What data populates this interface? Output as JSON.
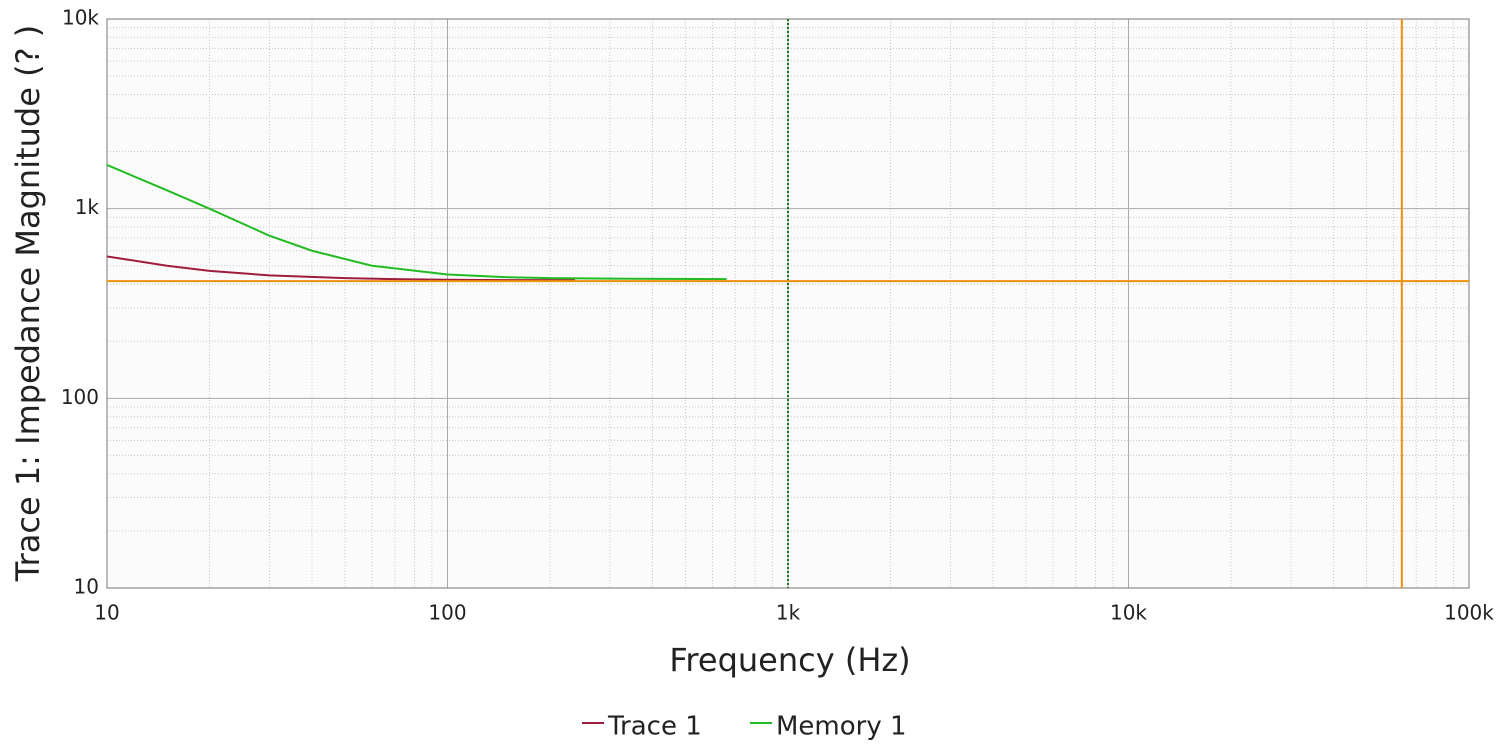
{
  "chart_data": {
    "type": "line",
    "x_label": "Frequency (Hz)",
    "y_label": "Trace 1: Impedance Magnitude (? )",
    "y_label_color": "#b0203c",
    "log_x": true,
    "log_y": true,
    "grid": true,
    "xlim": [
      10,
      100000
    ],
    "ylim": [
      10,
      10000
    ],
    "xticks": [
      10,
      100,
      {
        "value": 1000,
        "label": "1k"
      },
      {
        "value": 10000,
        "label": "10k"
      },
      {
        "value": 100000,
        "label": "100k"
      }
    ],
    "yticks": [
      10,
      100,
      {
        "value": 1000,
        "label": "1k"
      },
      {
        "value": 10000,
        "label": "10k"
      }
    ],
    "legend": "bottom",
    "series": [
      {
        "name": "Trace 1",
        "color": "#a01c3c",
        "x": [
          10,
          15,
          20,
          30,
          50,
          70,
          100,
          150,
          237
        ],
        "values": [
          560,
          500,
          470,
          445,
          430,
          425,
          422,
          420,
          420
        ]
      },
      {
        "name": "Memory 1",
        "color": "#22bb22",
        "x": [
          10,
          15,
          20,
          30,
          40,
          60,
          100,
          150,
          200,
          300,
          660
        ],
        "values": [
          1700,
          1250,
          1000,
          720,
          600,
          500,
          450,
          435,
          430,
          428,
          425
        ]
      }
    ],
    "cursor": {
      "x": 63500,
      "y": 415,
      "color": "#f0900a"
    },
    "marker": {
      "x": 1000,
      "color": "#1a7a1a"
    }
  }
}
